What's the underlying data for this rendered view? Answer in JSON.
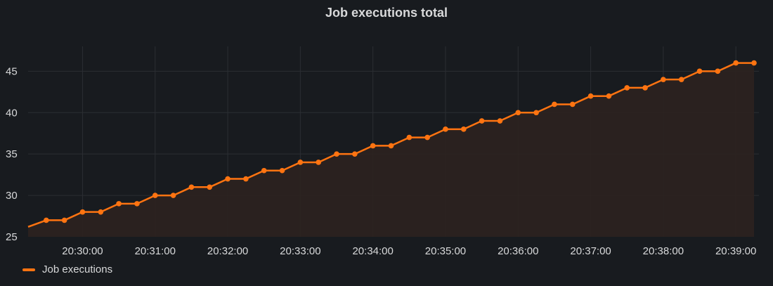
{
  "panel": {
    "title": "Job executions total"
  },
  "colors": {
    "background": "#181b1f",
    "series": "#ff7411",
    "fill": "#2c221f",
    "grid": "#2b2e33",
    "text": "#d8d9da"
  },
  "chart_data": {
    "type": "line",
    "title": "Job executions total",
    "xlabel": "",
    "ylabel": "",
    "x_ticks": [
      "20:30:00",
      "20:31:00",
      "20:32:00",
      "20:33:00",
      "20:34:00",
      "20:35:00",
      "20:36:00",
      "20:37:00",
      "20:38:00",
      "20:39:00"
    ],
    "y_ticks": [
      25,
      30,
      35,
      40,
      45
    ],
    "ylim": [
      25,
      48
    ],
    "xlim": [
      "20:29:15",
      "20:39:15"
    ],
    "grid": true,
    "legend_position": "bottom-left",
    "series": [
      {
        "name": "Job executions",
        "x": [
          "20:29:15",
          "20:29:30",
          "20:29:45",
          "20:30:00",
          "20:30:15",
          "20:30:30",
          "20:30:45",
          "20:31:00",
          "20:31:15",
          "20:31:30",
          "20:31:45",
          "20:32:00",
          "20:32:15",
          "20:32:30",
          "20:32:45",
          "20:33:00",
          "20:33:15",
          "20:33:30",
          "20:33:45",
          "20:34:00",
          "20:34:15",
          "20:34:30",
          "20:34:45",
          "20:35:00",
          "20:35:15",
          "20:35:30",
          "20:35:45",
          "20:36:00",
          "20:36:15",
          "20:36:30",
          "20:36:45",
          "20:37:00",
          "20:37:15",
          "20:37:30",
          "20:37:45",
          "20:38:00",
          "20:38:15",
          "20:38:30",
          "20:38:45",
          "20:39:00",
          "20:39:15"
        ],
        "values": [
          26.2,
          27,
          27,
          28,
          28,
          29,
          29,
          30,
          30,
          31,
          31,
          32,
          32,
          33,
          33,
          34,
          34,
          35,
          35,
          36,
          36,
          37,
          37,
          38,
          38,
          39,
          39,
          40,
          40,
          41,
          41,
          42,
          42,
          43,
          43,
          44,
          44,
          45,
          45,
          46,
          46
        ]
      }
    ]
  },
  "legend": {
    "label": "Job executions"
  }
}
